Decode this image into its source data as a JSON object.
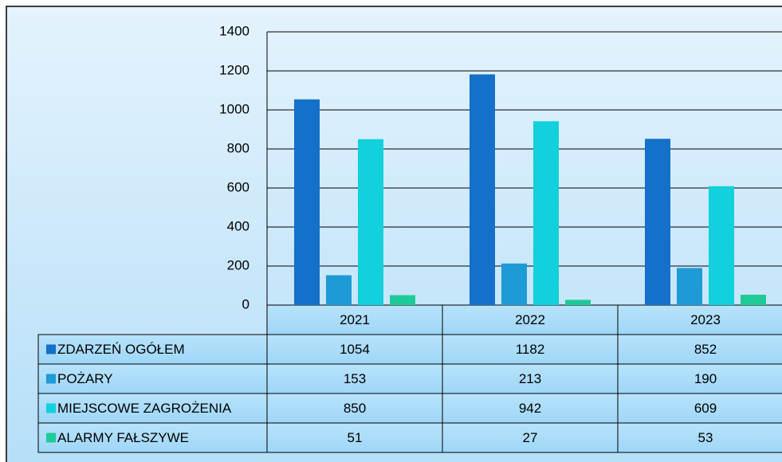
{
  "chart_data": {
    "type": "bar",
    "categories": [
      "2021",
      "2022",
      "2023"
    ],
    "series": [
      {
        "name": "ZDARZEŃ OGÓŁEM",
        "color": "#1470c8",
        "values": [
          1054,
          1182,
          852
        ]
      },
      {
        "name": "POŻARY",
        "color": "#1e9ad6",
        "values": [
          153,
          213,
          190
        ]
      },
      {
        "name": "MIEJSCOWE ZAGROŻENIA",
        "color": "#12d0dc",
        "values": [
          850,
          942,
          609
        ]
      },
      {
        "name": "ALARMY FAŁSZYWE",
        "color": "#1ecb98",
        "values": [
          51,
          27,
          53
        ]
      }
    ],
    "ylim": [
      0,
      1400
    ],
    "yticks": [
      0,
      200,
      400,
      600,
      800,
      1000,
      1200,
      1400
    ],
    "grid": true
  }
}
